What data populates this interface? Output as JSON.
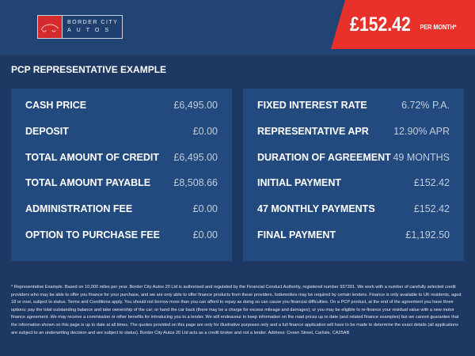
{
  "logo": {
    "text_line1": "BORDER CITY",
    "text_line2": "AUTOS"
  },
  "price": {
    "amount": "£152.42",
    "label": "PER MONTH*"
  },
  "title": "PCP REPRESENTATIVE EXAMPLE",
  "left": [
    {
      "label": "CASH PRICE",
      "value": "£6,495.00"
    },
    {
      "label": "DEPOSIT",
      "value": "£0.00"
    },
    {
      "label": "TOTAL AMOUNT OF CREDIT",
      "value": "£6,495.00"
    },
    {
      "label": "TOTAL AMOUNT PAYABLE",
      "value": "£8,508.66"
    },
    {
      "label": "ADMINISTRATION FEE",
      "value": "£0.00"
    },
    {
      "label": "OPTION TO PURCHASE FEE",
      "value": "£0.00"
    }
  ],
  "right": [
    {
      "label": "FIXED INTEREST RATE",
      "value": "6.72% P.A."
    },
    {
      "label": "REPRESENTATIVE APR",
      "value": "12.90% APR"
    },
    {
      "label": "DURATION OF AGREEMENT",
      "value": "49 MONTHS"
    },
    {
      "label": "INITIAL PAYMENT",
      "value": "£152.42"
    },
    {
      "label": "47 MONTHLY PAYMENTS",
      "value": "£152.42"
    },
    {
      "label": "FINAL PAYMENT",
      "value": "£1,192.50"
    }
  ],
  "footnote": "* Representative Example. Based on 10,000 miles per year. Border City Autos 20 Ltd is authorised and regulated by the Financial Conduct Authority, registered number 937391. We work with a number of carefully selected credit providers who may be able to offer you finance for your purchase, and we are only able to offer finance products from these providers. Indemnities may be required by certain lenders. Finance is only available to UK residents, aged 18 or over, subject to status. Terms and Conditions apply. You should not borrow more than you can afford to repay as doing so can cause you financial difficulties. On a PCP product, at the end of the agreement you have three options: pay the total outstanding balance and take ownership of the car; or hand the car back (there may be a charge for excess mileage and damages); or you may be eligible to re-finance your residual value with a new motor finance agreement. We may receive a commission or other benefits for introducing you to a lender. We will endeavour to keep information on the road prices up to date (and related finance examples) but we cannot guarantee that the information shown on this page is up to date at all times. The quotes provided on this page are only for illustrative purposes only and a full finance application will have to be made to determine the exact details (all applications are subject to an underwriting decision and are subject to status). Border City Autos 20 Ltd acts as a credit broker and not a lender. Address: Crown Street, Carlisle, CA25AB"
}
